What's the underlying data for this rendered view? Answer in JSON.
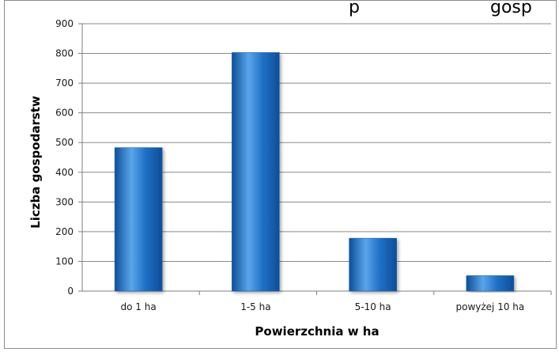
{
  "chart_data": {
    "type": "bar",
    "title": "",
    "title_partial": "p",
    "title_partial_right": "gosp",
    "categories": [
      "do 1 ha",
      "1-5 ha",
      "5-10 ha",
      "powyżej 10 ha"
    ],
    "values": [
      483,
      803,
      178,
      52
    ],
    "xlabel": "Powierzchnia w ha",
    "ylabel": "Liczba gospodarstw",
    "ylim": [
      0,
      900
    ],
    "yticks": [
      0,
      100,
      200,
      300,
      400,
      500,
      600,
      700,
      800,
      900
    ],
    "grid": true,
    "legend": "none",
    "bar_color": "#1f6fc5",
    "bar_color_light": "#5aa5ec",
    "bar_color_dark": "#0e4f98"
  }
}
